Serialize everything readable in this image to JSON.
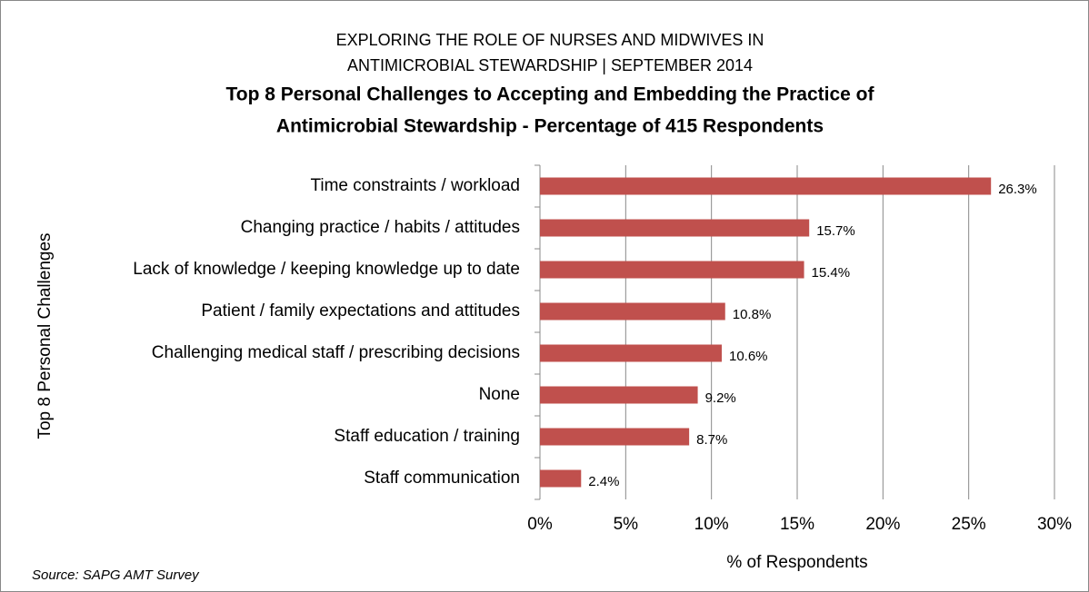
{
  "chart_data": {
    "type": "bar",
    "supertitle": [
      "EXPLORING THE ROLE OF NURSES AND MIDWIVES IN",
      "ANTIMICROBIAL STEWARDSHIP | SEPTEMBER 2014"
    ],
    "title": [
      "Top 8 Personal Challenges to Accepting and Embedding the Practice of",
      "Antimicrobial Stewardship - Percentage of 415 Respondents"
    ],
    "x_label": "% of Respondents",
    "y_label": "Top 8  Personal Challenges",
    "source": "Source: SAPG AMT Survey",
    "categories": [
      "Time constraints / workload",
      "Changing practice / habits / attitudes",
      "Lack of knowledge / keeping knowledge up to date",
      "Patient / family expectations and attitudes",
      "Challenging medical staff / prescribing decisions",
      "None",
      "Staff education / training",
      "Staff communication"
    ],
    "values": [
      26.3,
      15.7,
      15.4,
      10.8,
      10.6,
      9.2,
      8.7,
      2.4
    ],
    "value_labels": [
      "26.3%",
      "15.7%",
      "15.4%",
      "10.8%",
      "10.6%",
      "9.2%",
      "8.7%",
      "2.4%"
    ],
    "color": "#c0504d",
    "xlim": [
      0,
      30
    ],
    "xticks": [
      {
        "value": 0,
        "label": "0%"
      },
      {
        "value": 5,
        "label": "5%"
      },
      {
        "value": 10,
        "label": "10%"
      },
      {
        "value": 15,
        "label": "15%"
      },
      {
        "value": 20,
        "label": "20%"
      },
      {
        "value": 25,
        "label": "25%"
      },
      {
        "value": 30,
        "label": "30%"
      }
    ],
    "grid": true
  }
}
